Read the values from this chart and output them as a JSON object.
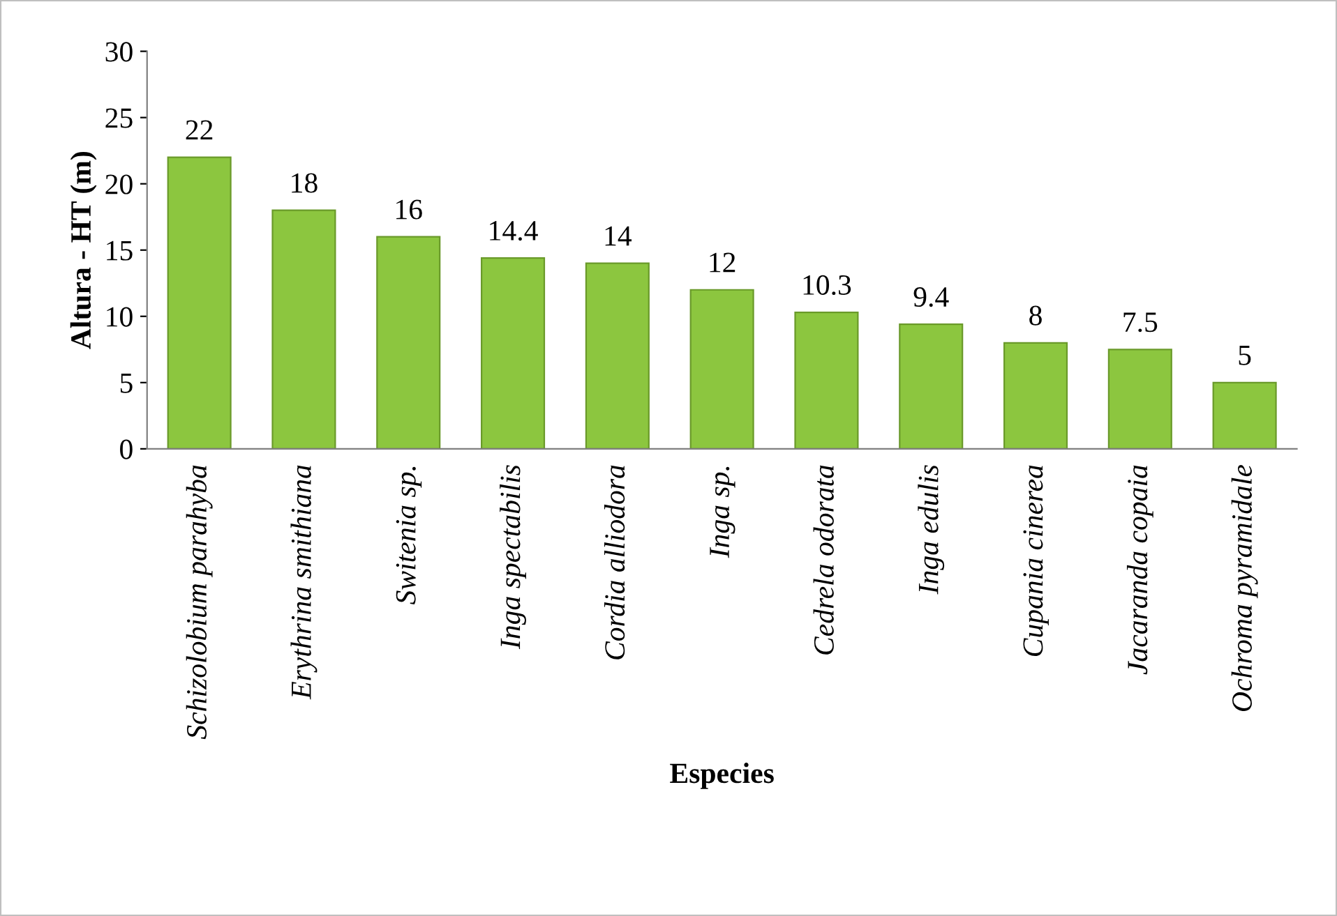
{
  "chart_data": {
    "type": "bar",
    "xlabel": "Especies",
    "ylabel": "Altura - HT (m)",
    "categories": [
      "Schizolobium parahyba",
      "Erythrina smithiana",
      "Switenia sp.",
      "Inga spectabilis",
      "Cordia alliodora",
      "Inga sp.",
      "Cedrela odorata",
      "Inga edulis",
      "Cupania cinerea",
      "Jacaranda copaia",
      "Ochroma pyramidale"
    ],
    "values": [
      22,
      18,
      16,
      14.4,
      14,
      12,
      10.3,
      9.4,
      8,
      7.5,
      5
    ],
    "color": "#8cc63f",
    "ylim": [
      0,
      30
    ],
    "yticks": [
      0,
      5,
      10,
      15,
      20,
      25,
      30
    ],
    "grid": false,
    "data_labels": true
  }
}
